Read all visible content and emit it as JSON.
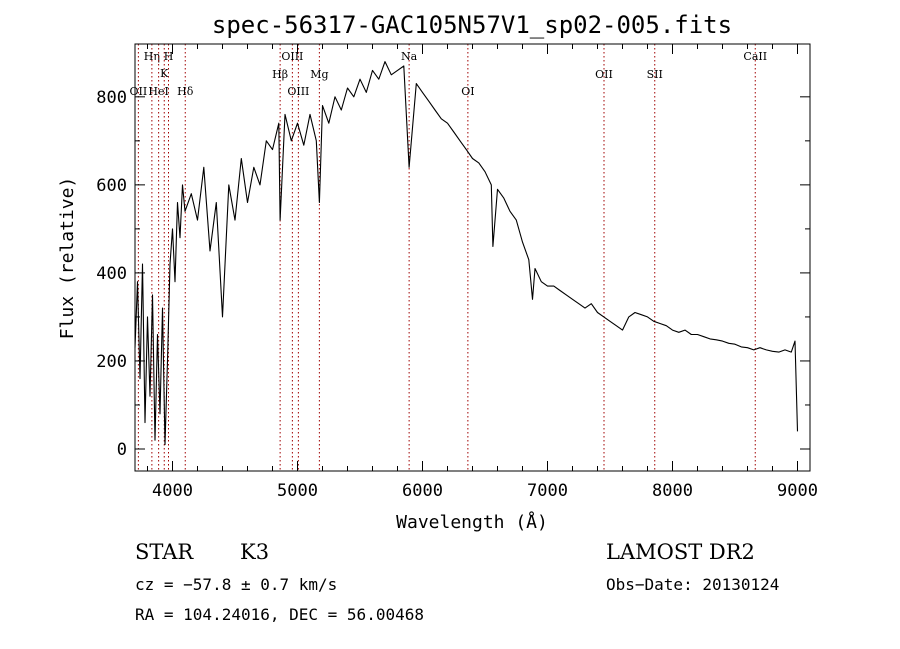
{
  "chart_data": {
    "type": "line",
    "title": "spec-56317-GAC105N57V1_sp02-005.fits",
    "xlabel": "Wavelength (Å)",
    "ylabel": "Flux (relative)",
    "xlim": [
      3700,
      9100
    ],
    "ylim": [
      -50,
      920
    ],
    "xticks": [
      4000,
      5000,
      6000,
      7000,
      8000,
      9000
    ],
    "yticks": [
      0,
      200,
      400,
      600,
      800
    ],
    "series": [
      {
        "x": [
          3700,
          3720,
          3740,
          3760,
          3780,
          3800,
          3820,
          3840,
          3860,
          3880,
          3900,
          3920,
          3940,
          3960,
          3980,
          4000,
          4020,
          4040,
          4060,
          4080,
          4100,
          4150,
          4200,
          4250,
          4300,
          4350,
          4400,
          4450,
          4500,
          4550,
          4600,
          4650,
          4700,
          4750,
          4800,
          4850,
          4861,
          4900,
          4950,
          5000,
          5050,
          5100,
          5150,
          5175,
          5200,
          5250,
          5300,
          5350,
          5400,
          5450,
          5500,
          5550,
          5600,
          5650,
          5700,
          5750,
          5800,
          5850,
          5893,
          5950,
          6000,
          6050,
          6100,
          6150,
          6200,
          6250,
          6300,
          6350,
          6400,
          6450,
          6500,
          6550,
          6563,
          6600,
          6650,
          6700,
          6750,
          6800,
          6850,
          6880,
          6900,
          6950,
          7000,
          7050,
          7100,
          7150,
          7200,
          7250,
          7300,
          7350,
          7400,
          7450,
          7500,
          7550,
          7600,
          7650,
          7700,
          7750,
          7800,
          7850,
          7900,
          7950,
          8000,
          8050,
          8100,
          8150,
          8200,
          8250,
          8300,
          8350,
          8400,
          8450,
          8500,
          8550,
          8600,
          8650,
          8700,
          8750,
          8800,
          8850,
          8900,
          8950,
          8980,
          9000
        ],
        "y": [
          230,
          380,
          160,
          420,
          60,
          300,
          120,
          350,
          20,
          260,
          80,
          320,
          10,
          200,
          420,
          500,
          380,
          560,
          480,
          600,
          540,
          580,
          520,
          640,
          450,
          560,
          300,
          600,
          520,
          660,
          560,
          640,
          600,
          700,
          680,
          740,
          520,
          760,
          700,
          740,
          690,
          760,
          700,
          560,
          780,
          740,
          800,
          770,
          820,
          800,
          840,
          810,
          860,
          840,
          880,
          850,
          860,
          870,
          640,
          830,
          810,
          790,
          770,
          750,
          740,
          720,
          700,
          680,
          660,
          650,
          630,
          600,
          460,
          590,
          570,
          540,
          520,
          470,
          430,
          340,
          410,
          380,
          370,
          370,
          360,
          350,
          340,
          330,
          320,
          330,
          310,
          300,
          290,
          280,
          270,
          300,
          310,
          305,
          300,
          290,
          285,
          280,
          270,
          265,
          270,
          260,
          260,
          255,
          250,
          248,
          245,
          240,
          238,
          232,
          230,
          225,
          230,
          225,
          222,
          220,
          225,
          220,
          245,
          40
        ]
      }
    ],
    "lines": [
      {
        "x": 3727,
        "label": "OII",
        "row": 4
      },
      {
        "x": 3835,
        "label": "Hη",
        "row": 1
      },
      {
        "x": 3889,
        "label": "HeI",
        "row": 4
      },
      {
        "x": 3934,
        "label": "K",
        "row": 2
      },
      {
        "x": 3968,
        "label": "H",
        "row": 1
      },
      {
        "x": 4102,
        "label": "Hδ",
        "row": 4
      },
      {
        "x": 4861,
        "label": "Hβ",
        "row": 3
      },
      {
        "x": 4959,
        "label": "OIII",
        "row": 1
      },
      {
        "x": 5007,
        "label": "OIII",
        "row": 4
      },
      {
        "x": 5175,
        "label": "Mg",
        "row": 3
      },
      {
        "x": 5893,
        "label": "Na",
        "row": 1
      },
      {
        "x": 6363,
        "label": "OI",
        "row": 4
      },
      {
        "x": 7452,
        "label": "OII",
        "row": 3
      },
      {
        "x": 7858,
        "label": "SII",
        "row": 3
      },
      {
        "x": 8662,
        "label": "CaII",
        "row": 1
      }
    ],
    "grid": false,
    "line_color": "#000000",
    "marker_color": "#a00000"
  },
  "info": {
    "object_class": "STAR",
    "subclass": "K3",
    "survey": "LAMOST DR2",
    "redshift": "cz = −57.8 ± 0.7 km/s",
    "obs_date": "Obs−Date: 20130124",
    "coords": "RA = 104.24016, DEC =  56.00468"
  }
}
